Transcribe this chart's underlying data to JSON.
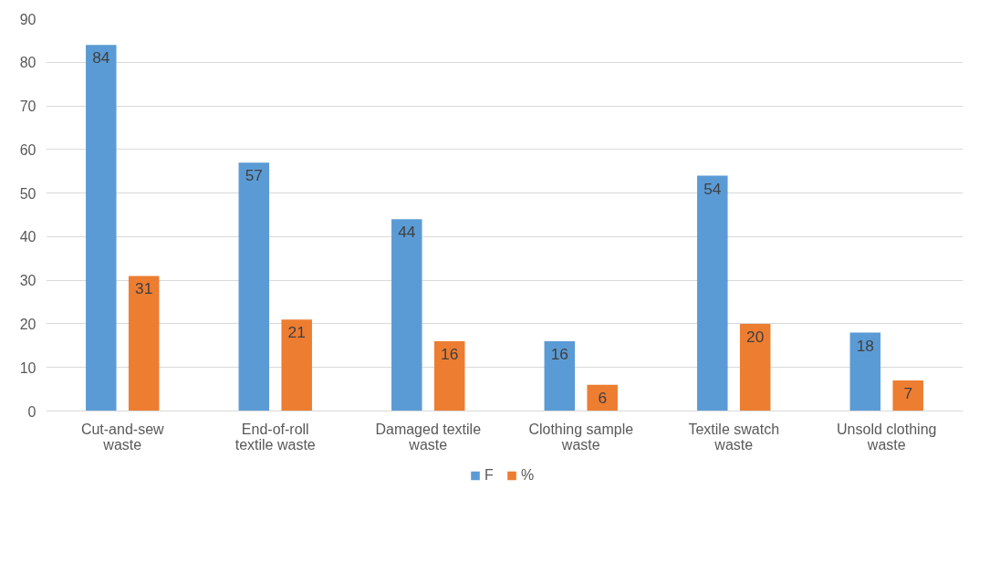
{
  "chart_data": {
    "type": "bar",
    "categories": [
      "Cut-and-sew waste",
      "End-of-roll textile waste",
      "Damaged textile waste",
      "Clothing sample waste",
      "Textile swatch waste",
      "Unsold clothing waste"
    ],
    "series": [
      {
        "name": "F",
        "color": "#5b9bd5",
        "values": [
          84,
          57,
          44,
          16,
          54,
          18
        ]
      },
      {
        "name": "%",
        "color": "#ed7d31",
        "values": [
          31,
          21,
          16,
          6,
          20,
          7
        ]
      }
    ],
    "ylim": [
      0,
      90
    ],
    "yticks": [
      0,
      10,
      20,
      30,
      40,
      50,
      60,
      70,
      80,
      90
    ],
    "grid": "y",
    "legend": "bottom",
    "data_labels": true
  }
}
